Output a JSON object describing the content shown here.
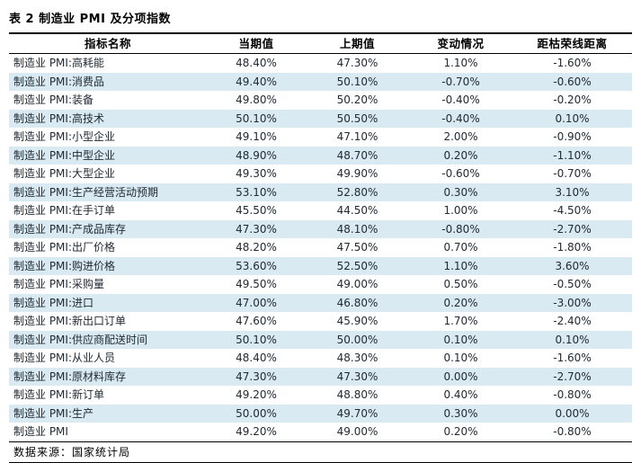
{
  "title": "表 2 制造业 PMI 及分项指数",
  "table": {
    "columns": [
      "指标名称",
      "当期值",
      "上期值",
      "变动情况",
      "距枯荣线距离"
    ],
    "rows": [
      {
        "name": "制造业 PMI:高耗能",
        "current": "48.40%",
        "previous": "47.30%",
        "change": "1.10%",
        "distance": "-1.60%"
      },
      {
        "name": "制造业 PMI:消费品",
        "current": "49.40%",
        "previous": "50.10%",
        "change": "-0.70%",
        "distance": "-0.60%"
      },
      {
        "name": "制造业 PMI:装备",
        "current": "49.80%",
        "previous": "50.20%",
        "change": "-0.40%",
        "distance": "-0.20%"
      },
      {
        "name": "制造业 PMI:高技术",
        "current": "50.10%",
        "previous": "50.50%",
        "change": "-0.40%",
        "distance": "0.10%"
      },
      {
        "name": "制造业 PMI:小型企业",
        "current": "49.10%",
        "previous": "47.10%",
        "change": "2.00%",
        "distance": "-0.90%"
      },
      {
        "name": "制造业 PMI:中型企业",
        "current": "48.90%",
        "previous": "48.70%",
        "change": "0.20%",
        "distance": "-1.10%"
      },
      {
        "name": "制造业 PMI:大型企业",
        "current": "49.30%",
        "previous": "49.90%",
        "change": "-0.60%",
        "distance": "-0.70%"
      },
      {
        "name": "制造业 PMI:生产经营活动预期",
        "current": "53.10%",
        "previous": "52.80%",
        "change": "0.30%",
        "distance": "3.10%"
      },
      {
        "name": "制造业 PMI:在手订单",
        "current": "45.50%",
        "previous": "44.50%",
        "change": "1.00%",
        "distance": "-4.50%"
      },
      {
        "name": "制造业 PMI:产成品库存",
        "current": "47.30%",
        "previous": "48.10%",
        "change": "-0.80%",
        "distance": "-2.70%"
      },
      {
        "name": "制造业 PMI:出厂价格",
        "current": "48.20%",
        "previous": "47.50%",
        "change": "0.70%",
        "distance": "-1.80%"
      },
      {
        "name": "制造业 PMI:购进价格",
        "current": "53.60%",
        "previous": "52.50%",
        "change": "1.10%",
        "distance": "3.60%"
      },
      {
        "name": "制造业 PMI:采购量",
        "current": "49.50%",
        "previous": "49.00%",
        "change": "0.50%",
        "distance": "-0.50%"
      },
      {
        "name": "制造业 PMI:进口",
        "current": "47.00%",
        "previous": "46.80%",
        "change": "0.20%",
        "distance": "-3.00%"
      },
      {
        "name": "制造业 PMI:新出口订单",
        "current": "47.60%",
        "previous": "45.90%",
        "change": "1.70%",
        "distance": "-2.40%"
      },
      {
        "name": "制造业 PMI:供应商配送时间",
        "current": "50.10%",
        "previous": "50.00%",
        "change": "0.10%",
        "distance": "0.10%"
      },
      {
        "name": "制造业 PMI:从业人员",
        "current": "48.40%",
        "previous": "48.30%",
        "change": "0.10%",
        "distance": "-1.60%"
      },
      {
        "name": "制造业 PMI:原材料库存",
        "current": "47.30%",
        "previous": "47.30%",
        "change": "0.00%",
        "distance": "-2.70%"
      },
      {
        "name": "制造业 PMI:新订单",
        "current": "49.20%",
        "previous": "48.80%",
        "change": "0.40%",
        "distance": "-0.80%"
      },
      {
        "name": "制造业 PMI:生产",
        "current": "50.00%",
        "previous": "49.70%",
        "change": "0.30%",
        "distance": "0.00%"
      },
      {
        "name": "制造业 PMI",
        "current": "49.20%",
        "previous": "49.00%",
        "change": "0.20%",
        "distance": "-0.80%"
      }
    ]
  },
  "footer": {
    "source": "数据来源：国家统计局"
  },
  "colors": {
    "stripe": "#d9eaf2",
    "rule": "#000000",
    "text": "#222a33"
  }
}
